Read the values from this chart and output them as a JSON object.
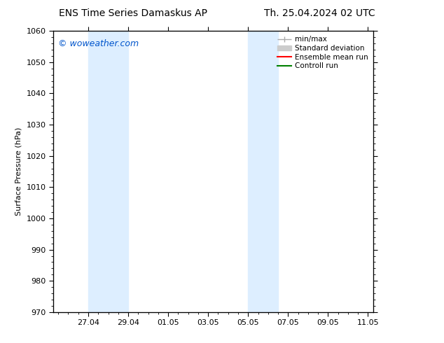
{
  "title_left": "ENS Time Series Damaskus AP",
  "title_right": "Th. 25.04.2024 02 UTC",
  "ylabel": "Surface Pressure (hPa)",
  "ylim": [
    970,
    1060
  ],
  "yticks": [
    970,
    980,
    990,
    1000,
    1010,
    1020,
    1030,
    1040,
    1050,
    1060
  ],
  "xtick_labels": [
    "27.04",
    "29.04",
    "01.05",
    "03.05",
    "05.05",
    "07.05",
    "09.05",
    "11.05"
  ],
  "xtick_positions": [
    2,
    4,
    6,
    8,
    10,
    12,
    14,
    16
  ],
  "xlim": [
    0.25,
    16.25
  ],
  "shaded_bands": [
    {
      "xstart": 2.0,
      "xend": 4.0,
      "color": "#ddeeff"
    },
    {
      "xstart": 10.0,
      "xend": 11.5,
      "color": "#ddeeff"
    }
  ],
  "watermark": "© woweather.com",
  "watermark_color": "#0055cc",
  "legend_entries": [
    {
      "label": "min/max",
      "color": "#aaaaaa",
      "lw": 1.0
    },
    {
      "label": "Standard deviation",
      "color": "#cccccc",
      "lw": 6
    },
    {
      "label": "Ensemble mean run",
      "color": "#ff0000",
      "lw": 1.5
    },
    {
      "label": "Controll run",
      "color": "#008000",
      "lw": 1.5
    }
  ],
  "bg_color": "#ffffff",
  "plot_bg_color": "#ffffff",
  "tick_color": "#000000",
  "title_fontsize": 10,
  "axis_label_fontsize": 8,
  "tick_fontsize": 8,
  "legend_fontsize": 7.5,
  "watermark_fontsize": 9
}
